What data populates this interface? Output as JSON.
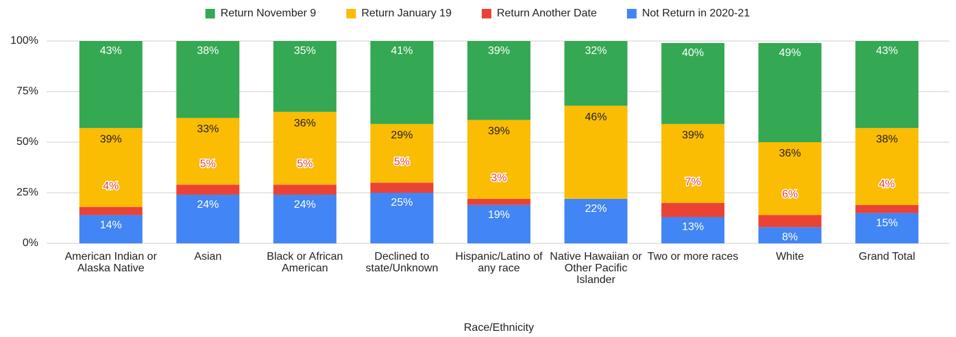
{
  "chart_data": {
    "type": "stacked_bar",
    "x_label": "Race/Ethnicity",
    "categories": [
      "American Indian or Alaska Native",
      "Asian",
      "Black or African American",
      "Declined to state/Unknown",
      "Hispanic/Latino of any race",
      "Native Hawaiian or Other Pacific Islander",
      "Two or more races",
      "White",
      "Grand Total"
    ],
    "series": [
      {
        "name": "Not Return in 2020-21",
        "color": "#4285f4",
        "values": [
          14,
          24,
          24,
          25,
          19,
          22,
          13,
          8,
          15
        ],
        "value_labels": [
          "14%",
          "24%",
          "24%",
          "25%",
          "19%",
          "22%",
          "13%",
          "8%",
          "15%"
        ]
      },
      {
        "name": "Return Another Date",
        "color": "#ea4335",
        "values": [
          4,
          5,
          5,
          5,
          3,
          0,
          7,
          6,
          4
        ],
        "value_labels": [
          "4%",
          "5%",
          "5%",
          "5%",
          "3%",
          null,
          "7%",
          "6%",
          "4%"
        ]
      },
      {
        "name": "Return January 19",
        "color": "#fbbc04",
        "values": [
          39,
          33,
          36,
          29,
          39,
          46,
          39,
          36,
          38
        ],
        "value_labels": [
          "39%",
          "33%",
          "36%",
          "29%",
          "39%",
          "46%",
          "39%",
          "36%",
          "38%"
        ]
      },
      {
        "name": "Return November 9",
        "color": "#34a853",
        "values": [
          43,
          38,
          35,
          41,
          39,
          32,
          40,
          49,
          43
        ],
        "value_labels": [
          "43%",
          "38%",
          "35%",
          "41%",
          "39%",
          "32%",
          "40%",
          "49%",
          "43%"
        ]
      }
    ],
    "legend_order": [
      3,
      2,
      1,
      0
    ],
    "ylim": [
      0,
      100
    ],
    "yticks": [
      {
        "value": 0,
        "label": "0%"
      },
      {
        "value": 25,
        "label": "25%"
      },
      {
        "value": 50,
        "label": "50%"
      },
      {
        "value": 75,
        "label": "75%"
      },
      {
        "value": 100,
        "label": "100%"
      }
    ],
    "grid": true
  }
}
